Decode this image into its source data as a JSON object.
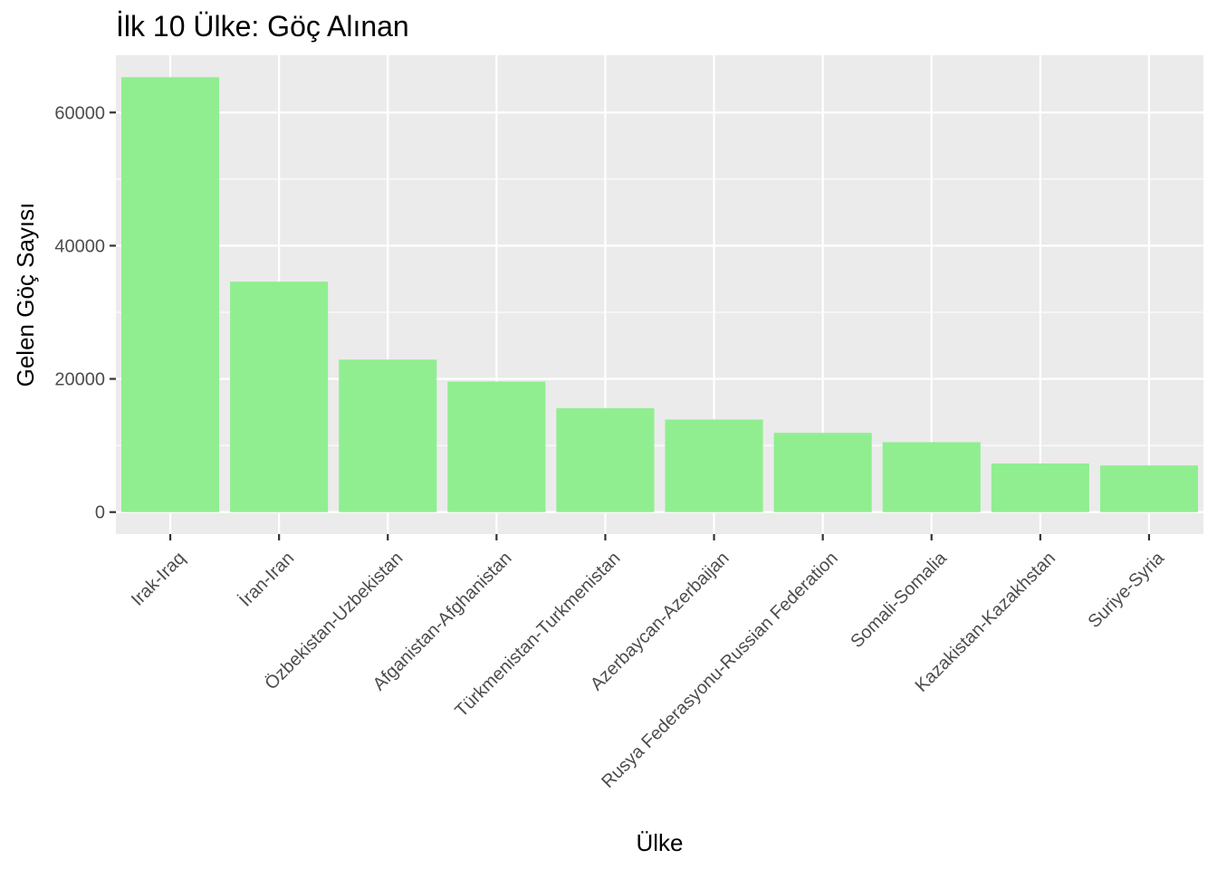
{
  "chart_data": {
    "type": "bar",
    "title": "İlk 10 Ülke: Göç Alınan",
    "xlabel": "Ülke",
    "ylabel": "Gelen Göç Sayısı",
    "categories": [
      "Irak-Iraq",
      "İran-Iran",
      "Özbekistan-Uzbekistan",
      "Afganistan-Afghanistan",
      "Türkmenistan-Turkmenistan",
      "Azerbaycan-Azerbaijan",
      "Rusya Federasyonu-Russian Federation",
      "Somali-Somalia",
      "Kazakistan-Kazakhstan",
      "Suriye-Syria"
    ],
    "values": [
      65300,
      34600,
      22900,
      19600,
      15600,
      13900,
      11900,
      10500,
      7300,
      7000
    ],
    "ylim": [
      -3300,
      68600
    ],
    "yticks": [
      0,
      20000,
      40000,
      60000
    ],
    "ytick_labels": [
      "0",
      "20000",
      "40000",
      "60000"
    ],
    "grid": true,
    "colors": {
      "bar": "#90EE90",
      "panel": "#EBEBEB",
      "grid": "#FFFFFF",
      "tick_text": "#4D4D4D"
    }
  }
}
